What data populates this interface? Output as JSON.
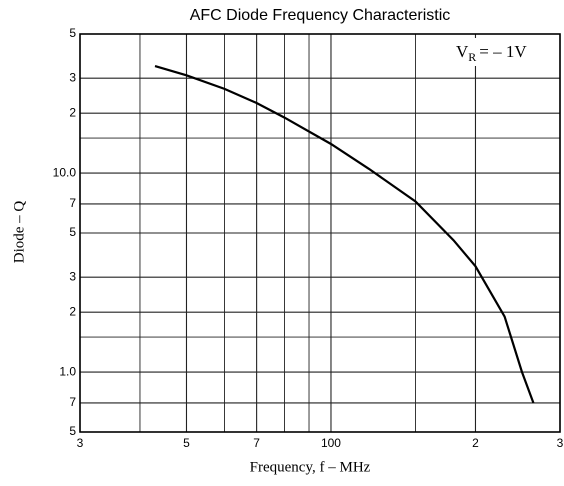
{
  "chart_data": {
    "type": "line",
    "title": "AFC Diode Frequency Characteristic",
    "xlabel": "Frequency, f  –  MHz",
    "ylabel": "Diode  –  Q",
    "annotation": {
      "main": "V",
      "sub": "R",
      "rest": "= – 1V"
    },
    "xscale": "log",
    "yscale": "log",
    "grid": true,
    "xlim": [
      30,
      300
    ],
    "ylim": [
      0.5,
      50
    ],
    "xticks": [
      {
        "value": 30,
        "label": "3"
      },
      {
        "value": 50,
        "label": "5"
      },
      {
        "value": 70,
        "label": "7"
      },
      100,
      {
        "value": 200,
        "label": "2"
      },
      {
        "value": 300,
        "label": "3"
      }
    ],
    "yticks": [
      {
        "value": 50,
        "label": "5"
      },
      {
        "value": 30,
        "label": "3"
      },
      {
        "value": 20,
        "label": "2"
      },
      {
        "value": 10,
        "label": "10.0"
      },
      7,
      5,
      3,
      2,
      {
        "value": 1,
        "label": "1.0"
      },
      {
        "value": 0.7,
        "label": "7"
      },
      {
        "value": 0.5,
        "label": "5"
      }
    ],
    "xminor": [
      40,
      60,
      80,
      90,
      150
    ],
    "yminor": [
      15,
      1.5
    ],
    "series": [
      {
        "name": "VR = -1V",
        "color": "#000000",
        "x": [
          43,
          50,
          60,
          70,
          80,
          100,
          120,
          150,
          180,
          200,
          230,
          250,
          264
        ],
        "values": [
          34.5,
          31,
          26.5,
          22.5,
          19,
          14,
          10.5,
          7.2,
          4.6,
          3.4,
          1.9,
          1.0,
          0.7
        ]
      }
    ]
  }
}
